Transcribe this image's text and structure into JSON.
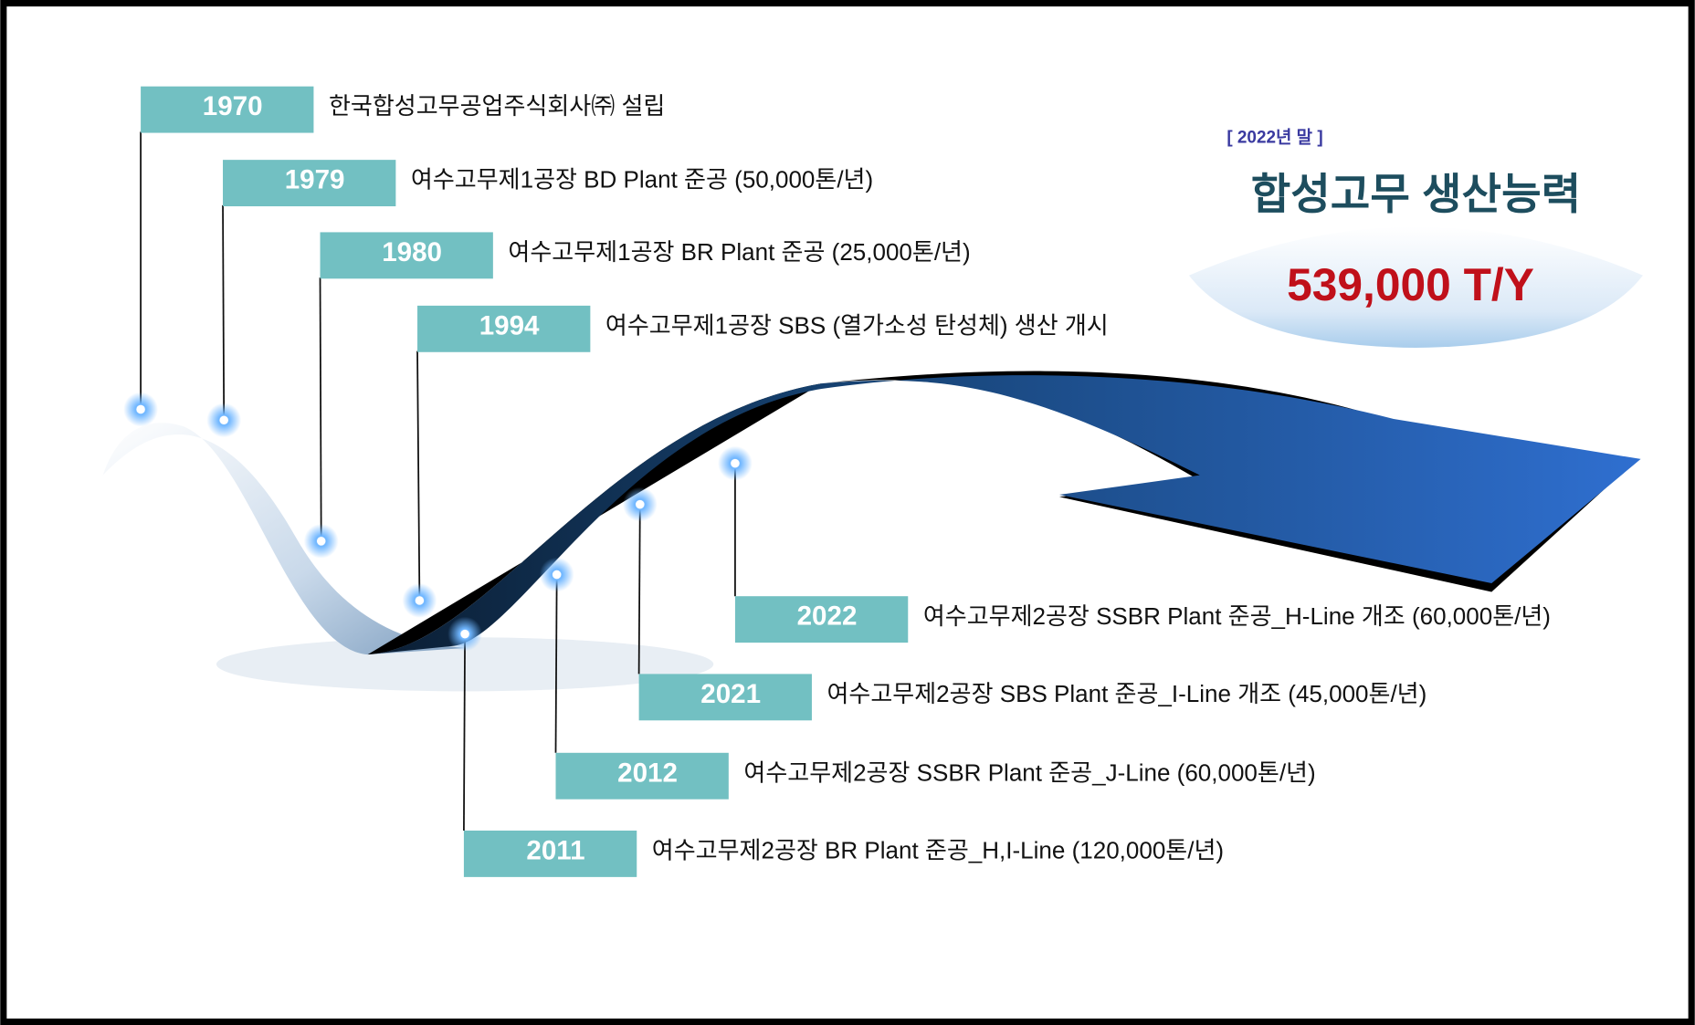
{
  "summary": {
    "period": "[ 2022년 말 ]",
    "title": "합성고무 생산능력",
    "capacity": "539,000 T/Y"
  },
  "milestones": [
    {
      "year": "1970",
      "text": "한국합성고무공업주식회사㈜ 설립"
    },
    {
      "year": "1979",
      "text": "여수고무제1공장 BD Plant 준공 (50,000톤/년)"
    },
    {
      "year": "1980",
      "text": "여수고무제1공장 BR Plant 준공 (25,000톤/년)"
    },
    {
      "year": "1994",
      "text": "여수고무제1공장 SBS (열가소성 탄성체) 생산 개시"
    },
    {
      "year": "2022",
      "text": "여수고무제2공장 SSBR Plant 준공_H-Line 개조 (60,000톤/년)"
    },
    {
      "year": "2021",
      "text": "여수고무제2공장 SBS Plant 준공_I-Line 개조 (45,000톤/년)"
    },
    {
      "year": "2012",
      "text": "여수고무제2공장 SSBR Plant 준공_J-Line (60,000톤/년)"
    },
    {
      "year": "2011",
      "text": "여수고무제2공장 BR Plant 준공_H,I-Line (120,000톤/년)"
    }
  ]
}
